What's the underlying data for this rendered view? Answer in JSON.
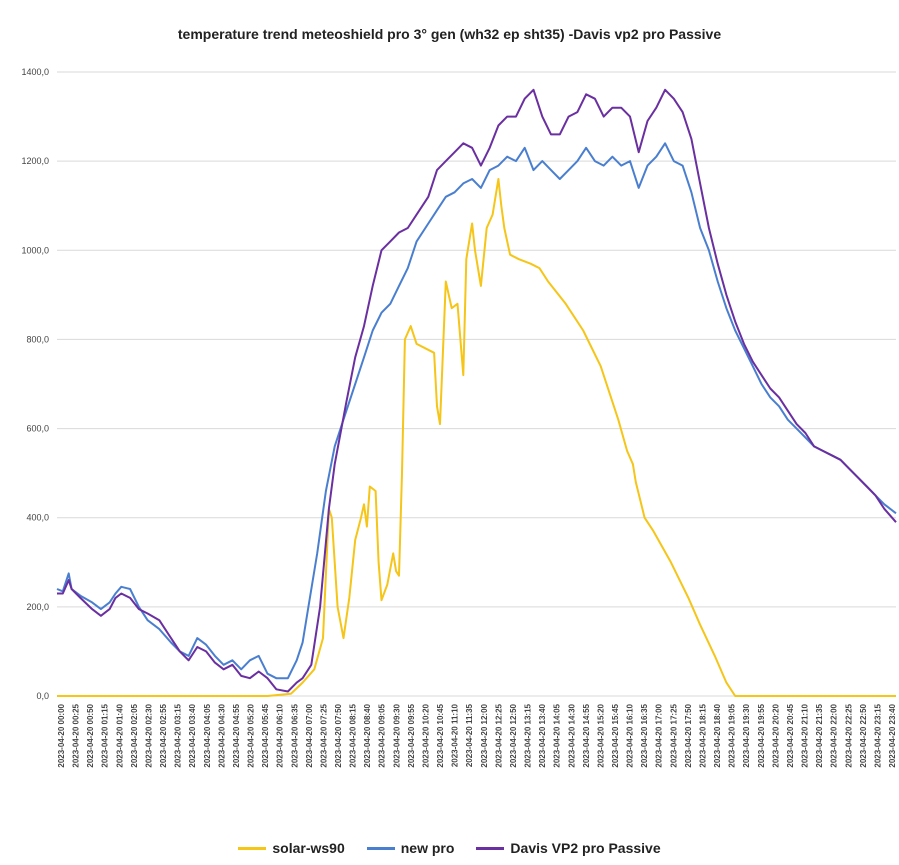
{
  "chart_data": {
    "type": "line",
    "title": "temperature trend meteoshield pro 3° gen (wh32 ep sht35) -Davis vp2 pro Passive",
    "xlabel": "",
    "ylabel": "",
    "ylim": [
      0,
      1400
    ],
    "yticks": [
      "0,0",
      "200,0",
      "400,0",
      "600,0",
      "800,0",
      "1000,0",
      "1200,0",
      "1400,0"
    ],
    "ytick_values": [
      0,
      200,
      400,
      600,
      800,
      1000,
      1200,
      1400
    ],
    "grid": true,
    "legend": "bottom",
    "x_start": "2023-04-20 00:00",
    "x_end": "2023-04-20 23:55",
    "xtick_labels": [
      "2023-04-20 00:00",
      "2023-04-20 00:25",
      "2023-04-20 00:50",
      "2023-04-20 01:15",
      "2023-04-20 01:40",
      "2023-04-20 02:05",
      "2023-04-20 02:30",
      "2023-04-20 02:55",
      "2023-04-20 03:15",
      "2023-04-20 03:40",
      "2023-04-20 04:05",
      "2023-04-20 04:30",
      "2023-04-20 04:55",
      "2023-04-20 05:20",
      "2023-04-20 05:45",
      "2023-04-20 06:10",
      "2023-04-20 06:35",
      "2023-04-20 07:00",
      "2023-04-20 07:25",
      "2023-04-20 07:50",
      "2023-04-20 08:15",
      "2023-04-20 08:40",
      "2023-04-20 09:05",
      "2023-04-20 09:30",
      "2023-04-20 09:55",
      "2023-04-20 10:20",
      "2023-04-20 10:45",
      "2023-04-20 11:10",
      "2023-04-20 11:35",
      "2023-04-20 12:00",
      "2023-04-20 12:25",
      "2023-04-20 12:50",
      "2023-04-20 13:15",
      "2023-04-20 13:40",
      "2023-04-20 14:05",
      "2023-04-20 14:30",
      "2023-04-20 14:55",
      "2023-04-20 15:20",
      "2023-04-20 15:45",
      "2023-04-20 16:10",
      "2023-04-20 16:35",
      "2023-04-20 17:00",
      "2023-04-20 17:25",
      "2023-04-20 17:50",
      "2023-04-20 18:15",
      "2023-04-20 18:40",
      "2023-04-20 19:05",
      "2023-04-20 19:30",
      "2023-04-20 19:55",
      "2023-04-20 20:20",
      "2023-04-20 20:45",
      "2023-04-20 21:10",
      "2023-04-20 21:35",
      "2023-04-20 22:00",
      "2023-04-20 22:25",
      "2023-04-20 22:50",
      "2023-04-20 23:15",
      "2023-04-20 23:40"
    ],
    "series": [
      {
        "name": "solar-ws90",
        "color": "#F5C518",
        "points": [
          [
            "00:00",
            0
          ],
          [
            "06:00",
            0
          ],
          [
            "06:40",
            5
          ],
          [
            "07:00",
            30
          ],
          [
            "07:20",
            60
          ],
          [
            "07:35",
            130
          ],
          [
            "07:45",
            420
          ],
          [
            "07:50",
            400
          ],
          [
            "08:00",
            200
          ],
          [
            "08:10",
            130
          ],
          [
            "08:20",
            220
          ],
          [
            "08:30",
            350
          ],
          [
            "08:40",
            400
          ],
          [
            "08:45",
            430
          ],
          [
            "08:50",
            380
          ],
          [
            "08:55",
            470
          ],
          [
            "09:05",
            460
          ],
          [
            "09:10",
            300
          ],
          [
            "09:15",
            215
          ],
          [
            "09:25",
            250
          ],
          [
            "09:35",
            320
          ],
          [
            "09:40",
            280
          ],
          [
            "09:45",
            270
          ],
          [
            "09:50",
            500
          ],
          [
            "09:55",
            800
          ],
          [
            "10:05",
            830
          ],
          [
            "10:15",
            790
          ],
          [
            "10:30",
            780
          ],
          [
            "10:45",
            770
          ],
          [
            "10:50",
            650
          ],
          [
            "10:55",
            610
          ],
          [
            "11:05",
            930
          ],
          [
            "11:15",
            870
          ],
          [
            "11:25",
            880
          ],
          [
            "11:35",
            720
          ],
          [
            "11:40",
            980
          ],
          [
            "11:50",
            1060
          ],
          [
            "11:55",
            1000
          ],
          [
            "12:05",
            920
          ],
          [
            "12:15",
            1050
          ],
          [
            "12:25",
            1080
          ],
          [
            "12:35",
            1160
          ],
          [
            "12:40",
            1100
          ],
          [
            "12:45",
            1050
          ],
          [
            "12:55",
            990
          ],
          [
            "13:10",
            980
          ],
          [
            "13:30",
            970
          ],
          [
            "13:45",
            960
          ],
          [
            "14:00",
            930
          ],
          [
            "14:30",
            880
          ],
          [
            "15:00",
            820
          ],
          [
            "15:30",
            740
          ],
          [
            "16:00",
            620
          ],
          [
            "16:15",
            550
          ],
          [
            "16:25",
            520
          ],
          [
            "16:30",
            480
          ],
          [
            "16:45",
            400
          ],
          [
            "17:00",
            370
          ],
          [
            "17:30",
            300
          ],
          [
            "18:00",
            220
          ],
          [
            "18:20",
            160
          ],
          [
            "18:45",
            90
          ],
          [
            "19:05",
            30
          ],
          [
            "19:20",
            0
          ],
          [
            "23:55",
            0
          ]
        ]
      },
      {
        "name": "new pro",
        "color": "#4A7FD0",
        "points": [
          [
            "00:00",
            240
          ],
          [
            "00:10",
            235
          ],
          [
            "00:20",
            275
          ],
          [
            "00:25",
            240
          ],
          [
            "00:40",
            225
          ],
          [
            "01:00",
            210
          ],
          [
            "01:15",
            195
          ],
          [
            "01:30",
            210
          ],
          [
            "01:40",
            230
          ],
          [
            "01:50",
            245
          ],
          [
            "02:05",
            240
          ],
          [
            "02:20",
            200
          ],
          [
            "02:35",
            170
          ],
          [
            "02:55",
            150
          ],
          [
            "03:15",
            120
          ],
          [
            "03:30",
            100
          ],
          [
            "03:45",
            90
          ],
          [
            "04:00",
            130
          ],
          [
            "04:15",
            115
          ],
          [
            "04:30",
            90
          ],
          [
            "04:45",
            70
          ],
          [
            "05:00",
            80
          ],
          [
            "05:15",
            60
          ],
          [
            "05:30",
            80
          ],
          [
            "05:45",
            90
          ],
          [
            "06:00",
            50
          ],
          [
            "06:15",
            40
          ],
          [
            "06:35",
            40
          ],
          [
            "06:50",
            80
          ],
          [
            "07:00",
            120
          ],
          [
            "07:10",
            200
          ],
          [
            "07:25",
            320
          ],
          [
            "07:40",
            460
          ],
          [
            "07:55",
            560
          ],
          [
            "08:15",
            640
          ],
          [
            "08:30",
            700
          ],
          [
            "08:45",
            760
          ],
          [
            "09:00",
            820
          ],
          [
            "09:15",
            860
          ],
          [
            "09:30",
            880
          ],
          [
            "09:45",
            920
          ],
          [
            "10:00",
            960
          ],
          [
            "10:15",
            1020
          ],
          [
            "10:35",
            1060
          ],
          [
            "10:50",
            1090
          ],
          [
            "11:05",
            1120
          ],
          [
            "11:20",
            1130
          ],
          [
            "11:35",
            1150
          ],
          [
            "11:50",
            1160
          ],
          [
            "12:05",
            1140
          ],
          [
            "12:20",
            1180
          ],
          [
            "12:35",
            1190
          ],
          [
            "12:50",
            1210
          ],
          [
            "13:05",
            1200
          ],
          [
            "13:20",
            1230
          ],
          [
            "13:35",
            1180
          ],
          [
            "13:50",
            1200
          ],
          [
            "14:05",
            1180
          ],
          [
            "14:20",
            1160
          ],
          [
            "14:35",
            1180
          ],
          [
            "14:50",
            1200
          ],
          [
            "15:05",
            1230
          ],
          [
            "15:20",
            1200
          ],
          [
            "15:35",
            1190
          ],
          [
            "15:50",
            1210
          ],
          [
            "16:05",
            1190
          ],
          [
            "16:20",
            1200
          ],
          [
            "16:35",
            1140
          ],
          [
            "16:50",
            1190
          ],
          [
            "17:05",
            1210
          ],
          [
            "17:20",
            1240
          ],
          [
            "17:35",
            1200
          ],
          [
            "17:50",
            1190
          ],
          [
            "18:05",
            1130
          ],
          [
            "18:20",
            1050
          ],
          [
            "18:35",
            1000
          ],
          [
            "18:50",
            930
          ],
          [
            "19:05",
            870
          ],
          [
            "19:20",
            820
          ],
          [
            "19:35",
            780
          ],
          [
            "19:50",
            740
          ],
          [
            "20:05",
            700
          ],
          [
            "20:20",
            670
          ],
          [
            "20:35",
            650
          ],
          [
            "20:50",
            620
          ],
          [
            "21:05",
            600
          ],
          [
            "21:20",
            580
          ],
          [
            "21:35",
            560
          ],
          [
            "21:50",
            550
          ],
          [
            "22:05",
            540
          ],
          [
            "22:20",
            530
          ],
          [
            "22:35",
            510
          ],
          [
            "22:50",
            490
          ],
          [
            "23:05",
            470
          ],
          [
            "23:20",
            450
          ],
          [
            "23:35",
            430
          ],
          [
            "23:55",
            410
          ]
        ]
      },
      {
        "name": "Davis VP2 pro Passive",
        "color": "#6A2FA0",
        "points": [
          [
            "00:00",
            230
          ],
          [
            "00:10",
            230
          ],
          [
            "00:20",
            260
          ],
          [
            "00:25",
            240
          ],
          [
            "00:40",
            220
          ],
          [
            "01:00",
            195
          ],
          [
            "01:15",
            180
          ],
          [
            "01:30",
            195
          ],
          [
            "01:40",
            220
          ],
          [
            "01:50",
            230
          ],
          [
            "02:05",
            220
          ],
          [
            "02:20",
            195
          ],
          [
            "02:35",
            185
          ],
          [
            "02:55",
            170
          ],
          [
            "03:15",
            130
          ],
          [
            "03:30",
            100
          ],
          [
            "03:45",
            80
          ],
          [
            "04:00",
            110
          ],
          [
            "04:15",
            100
          ],
          [
            "04:30",
            75
          ],
          [
            "04:45",
            60
          ],
          [
            "05:00",
            70
          ],
          [
            "05:15",
            45
          ],
          [
            "05:30",
            40
          ],
          [
            "05:45",
            55
          ],
          [
            "06:00",
            40
          ],
          [
            "06:15",
            15
          ],
          [
            "06:35",
            10
          ],
          [
            "06:50",
            30
          ],
          [
            "07:00",
            40
          ],
          [
            "07:15",
            70
          ],
          [
            "07:30",
            200
          ],
          [
            "07:45",
            420
          ],
          [
            "07:55",
            520
          ],
          [
            "08:15",
            660
          ],
          [
            "08:30",
            760
          ],
          [
            "08:45",
            830
          ],
          [
            "09:00",
            920
          ],
          [
            "09:15",
            1000
          ],
          [
            "09:30",
            1020
          ],
          [
            "09:45",
            1040
          ],
          [
            "10:00",
            1050
          ],
          [
            "10:15",
            1080
          ],
          [
            "10:35",
            1120
          ],
          [
            "10:50",
            1180
          ],
          [
            "11:05",
            1200
          ],
          [
            "11:20",
            1220
          ],
          [
            "11:35",
            1240
          ],
          [
            "11:50",
            1230
          ],
          [
            "12:05",
            1190
          ],
          [
            "12:20",
            1230
          ],
          [
            "12:35",
            1280
          ],
          [
            "12:50",
            1300
          ],
          [
            "13:05",
            1300
          ],
          [
            "13:20",
            1340
          ],
          [
            "13:35",
            1360
          ],
          [
            "13:50",
            1300
          ],
          [
            "14:05",
            1260
          ],
          [
            "14:20",
            1260
          ],
          [
            "14:35",
            1300
          ],
          [
            "14:50",
            1310
          ],
          [
            "15:05",
            1350
          ],
          [
            "15:20",
            1340
          ],
          [
            "15:35",
            1300
          ],
          [
            "15:50",
            1320
          ],
          [
            "16:05",
            1320
          ],
          [
            "16:20",
            1300
          ],
          [
            "16:35",
            1220
          ],
          [
            "16:50",
            1290
          ],
          [
            "17:05",
            1320
          ],
          [
            "17:20",
            1360
          ],
          [
            "17:35",
            1340
          ],
          [
            "17:50",
            1310
          ],
          [
            "18:05",
            1250
          ],
          [
            "18:20",
            1150
          ],
          [
            "18:35",
            1050
          ],
          [
            "18:50",
            970
          ],
          [
            "19:05",
            900
          ],
          [
            "19:20",
            840
          ],
          [
            "19:35",
            790
          ],
          [
            "19:50",
            750
          ],
          [
            "20:05",
            720
          ],
          [
            "20:20",
            690
          ],
          [
            "20:35",
            670
          ],
          [
            "20:50",
            640
          ],
          [
            "21:05",
            610
          ],
          [
            "21:20",
            590
          ],
          [
            "21:35",
            560
          ],
          [
            "21:50",
            550
          ],
          [
            "22:05",
            540
          ],
          [
            "22:20",
            530
          ],
          [
            "22:35",
            510
          ],
          [
            "22:50",
            490
          ],
          [
            "23:05",
            470
          ],
          [
            "23:20",
            450
          ],
          [
            "23:35",
            420
          ],
          [
            "23:55",
            390
          ]
        ]
      }
    ]
  }
}
